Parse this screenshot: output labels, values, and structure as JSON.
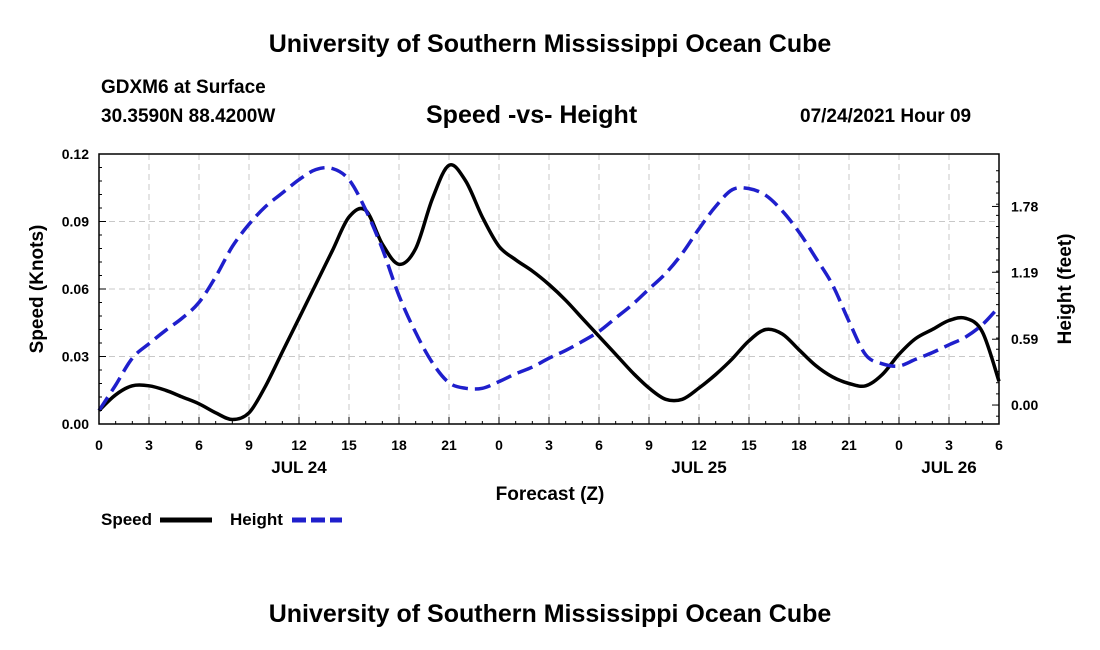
{
  "header": {
    "title": "University of Southern Mississippi Ocean Cube",
    "station": "GDXM6 at Surface",
    "location": "30.3590N  88.4200W",
    "datetime": "07/24/2021 Hour 09"
  },
  "footer": {
    "title": "University of Southern Mississippi Ocean Cube"
  },
  "colors": {
    "speed": "#000000",
    "height": "#1f1fcc",
    "grid": "#c8c8c8"
  },
  "chart_data": {
    "type": "line",
    "title": "Speed -vs- Height",
    "xlabel": "Forecast (Z)",
    "ylabel_left": "Speed (Knots)",
    "ylabel_right": "Height (feet)",
    "x_range_hours": [
      0,
      54
    ],
    "x_ticks": [
      "0",
      "3",
      "6",
      "9",
      "12",
      "15",
      "18",
      "21",
      "0",
      "3",
      "6",
      "9",
      "12",
      "15",
      "18",
      "21",
      "0",
      "3",
      "6"
    ],
    "date_labels": [
      {
        "label": "JUL 24",
        "hour": 12
      },
      {
        "label": "JUL 25",
        "hour": 36
      },
      {
        "label": "JUL 26",
        "hour": 51
      }
    ],
    "ylim_left": [
      0,
      0.12
    ],
    "yticks_left": [
      "0.00",
      "0.03",
      "0.06",
      "0.09",
      "0.12"
    ],
    "ylim_right": [
      -0.17,
      2.25
    ],
    "yticks_right": [
      {
        "label": "0.00",
        "value": 0.0
      },
      {
        "label": "0.59",
        "value": 0.59
      },
      {
        "label": "1.19",
        "value": 1.19
      },
      {
        "label": "1.78",
        "value": 1.78
      }
    ],
    "grid": true,
    "legend": [
      {
        "name": "Speed",
        "style": "solid"
      },
      {
        "name": "Height",
        "style": "dashed"
      }
    ],
    "series": [
      {
        "name": "Speed",
        "axis": "left",
        "x": [
          0,
          1,
          2,
          3,
          4,
          5,
          6,
          7,
          8,
          9,
          10,
          11,
          12,
          13,
          14,
          15,
          16,
          17,
          18,
          19,
          20,
          21,
          22,
          23,
          24,
          25,
          26,
          27,
          28,
          29,
          30,
          31,
          32,
          33,
          34,
          35,
          36,
          37,
          38,
          39,
          40,
          41,
          42,
          43,
          44,
          45,
          46,
          47,
          48,
          49,
          50,
          51,
          52,
          53,
          54
        ],
        "values": [
          0.006,
          0.013,
          0.017,
          0.017,
          0.015,
          0.012,
          0.009,
          0.005,
          0.002,
          0.005,
          0.017,
          0.032,
          0.047,
          0.062,
          0.077,
          0.092,
          0.095,
          0.08,
          0.071,
          0.078,
          0.1,
          0.115,
          0.108,
          0.092,
          0.079,
          0.073,
          0.068,
          0.062,
          0.055,
          0.047,
          0.039,
          0.031,
          0.023,
          0.016,
          0.011,
          0.011,
          0.016,
          0.022,
          0.029,
          0.037,
          0.042,
          0.04,
          0.033,
          0.026,
          0.021,
          0.018,
          0.017,
          0.022,
          0.031,
          0.038,
          0.042,
          0.046,
          0.047,
          0.041,
          0.019
        ]
      },
      {
        "name": "Height",
        "axis": "right",
        "x": [
          0,
          1,
          2,
          3,
          4,
          5,
          6,
          7,
          8,
          9,
          10,
          11,
          12,
          13,
          14,
          15,
          16,
          17,
          18,
          19,
          20,
          21,
          22,
          23,
          24,
          25,
          26,
          27,
          28,
          29,
          30,
          31,
          32,
          33,
          34,
          35,
          36,
          37,
          38,
          39,
          40,
          41,
          42,
          43,
          44,
          45,
          46,
          47,
          48,
          49,
          50,
          51,
          52,
          53,
          54
        ],
        "values": [
          -0.05,
          0.18,
          0.42,
          0.55,
          0.67,
          0.78,
          0.92,
          1.15,
          1.42,
          1.62,
          1.78,
          1.9,
          2.02,
          2.11,
          2.12,
          2.02,
          1.75,
          1.4,
          0.98,
          0.65,
          0.38,
          0.2,
          0.15,
          0.15,
          0.21,
          0.28,
          0.34,
          0.42,
          0.49,
          0.57,
          0.66,
          0.78,
          0.9,
          1.04,
          1.18,
          1.36,
          1.58,
          1.78,
          1.93,
          1.94,
          1.88,
          1.74,
          1.55,
          1.32,
          1.08,
          0.75,
          0.45,
          0.37,
          0.35,
          0.41,
          0.47,
          0.54,
          0.61,
          0.72,
          0.88
        ]
      }
    ]
  }
}
